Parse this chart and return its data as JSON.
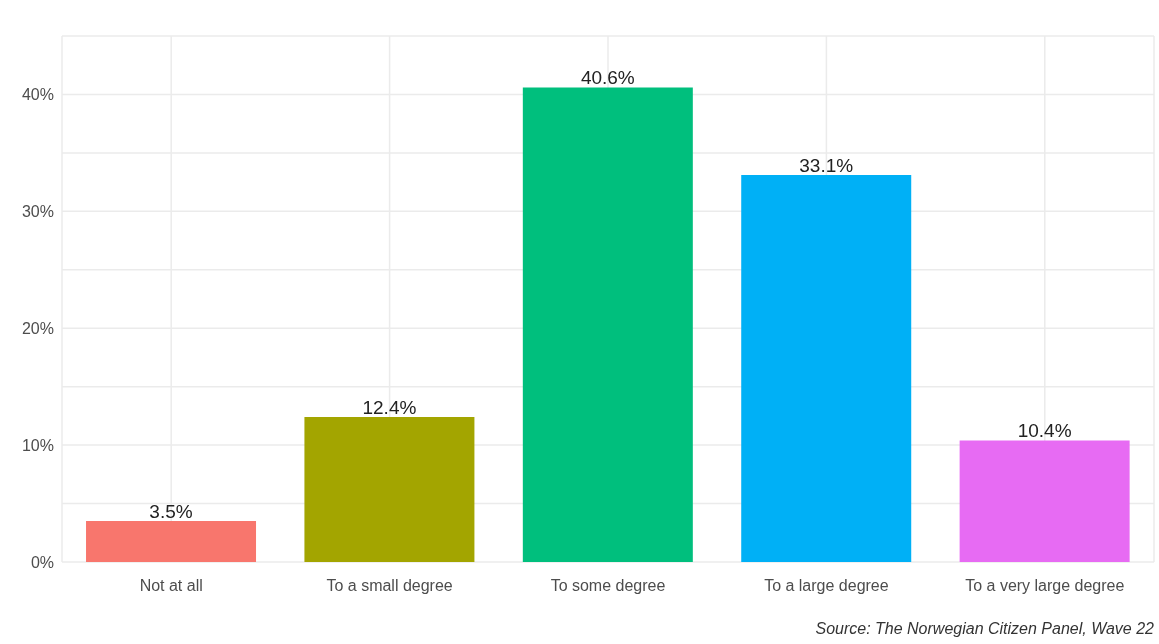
{
  "chart_data": {
    "type": "bar",
    "categories": [
      "Not at all",
      "To a small degree",
      "To some degree",
      "To a large degree",
      "To a very large degree"
    ],
    "values": [
      3.5,
      12.4,
      40.6,
      33.1,
      10.4
    ],
    "value_labels": [
      "3.5%",
      "12.4%",
      "40.6%",
      "33.1%",
      "10.4%"
    ],
    "colors": [
      "#f8766d",
      "#a3a500",
      "#00bf7d",
      "#00b0f6",
      "#e76bf3"
    ],
    "ylim": [
      0,
      45
    ],
    "yticks": [
      {
        "value": 0,
        "label": "0%"
      },
      {
        "value": 5,
        "label": null
      },
      {
        "value": 10,
        "label": "10%"
      },
      {
        "value": 15,
        "label": null
      },
      {
        "value": 20,
        "label": "20%"
      },
      {
        "value": 25,
        "label": null
      },
      {
        "value": 30,
        "label": "30%"
      },
      {
        "value": 35,
        "label": null
      },
      {
        "value": 40,
        "label": "40%"
      },
      {
        "value": 45,
        "label": null
      }
    ],
    "grid": true,
    "annotations": [
      "Source: The Norwegian Citizen Panel, Wave 22"
    ]
  }
}
